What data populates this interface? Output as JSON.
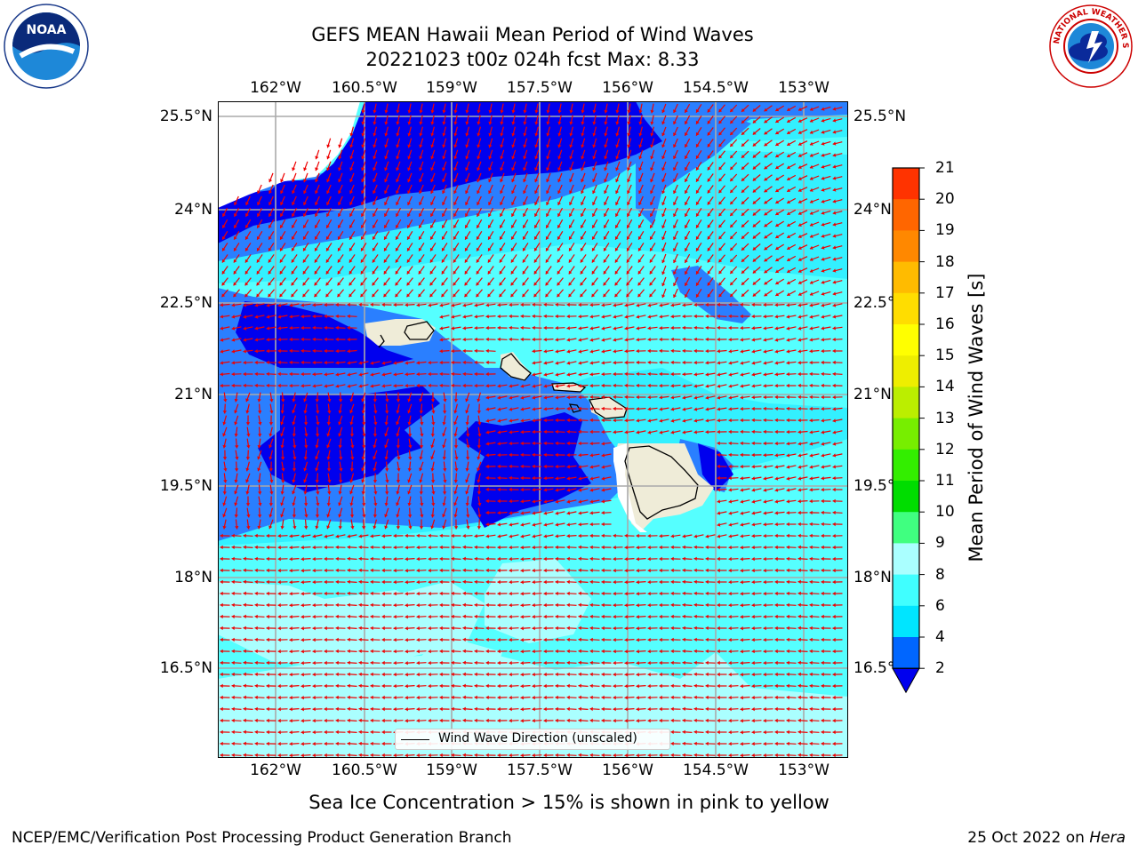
{
  "title": {
    "line1": "GEFS MEAN Hawaii Mean Period of Wind Waves",
    "line2": "20221023 t00z 024h fcst   Max: 8.33"
  },
  "axes": {
    "lon_labels": [
      "162°W",
      "160.5°W",
      "159°W",
      "157.5°W",
      "156°W",
      "154.5°W",
      "153°W"
    ],
    "lat_labels": [
      "25.5°N",
      "24°N",
      "22.5°N",
      "21°N",
      "19.5°N",
      "18°N",
      "16.5°N"
    ]
  },
  "legend": {
    "label": "Wind Wave Direction (unscaled)"
  },
  "colorbar": {
    "label": "Mean Period of Wind Waves [s]",
    "ticks": [
      "2",
      "4",
      "6",
      "8",
      "9",
      "10",
      "11",
      "12",
      "13",
      "14",
      "15",
      "16",
      "17",
      "18",
      "19",
      "20",
      "21"
    ],
    "colors": [
      "#0066ff",
      "#00e5ff",
      "#40ffff",
      "#aaffff",
      "#40ff80",
      "#00dd00",
      "#33ee00",
      "#77ee00",
      "#bbee00",
      "#eeee00",
      "#ffff00",
      "#ffdd00",
      "#ffbb00",
      "#ff8800",
      "#ff6600",
      "#ff3300"
    ],
    "under_color": "#0000ee"
  },
  "map_colors": {
    "lt2": "#0000ee",
    "p2_4": "#2a7fff",
    "p4_6": "#33f0ff",
    "p6_8": "#55ffff",
    "p8_9": "#aaffff",
    "land": "#efecd8",
    "arrow": "#ee0000"
  },
  "footer": {
    "sea_ice_note": "Sea Ice Concentration > 15% is shown in pink to yellow",
    "credit": "NCEP/EMC/Verification Post Processing Product Generation Branch",
    "date": "25 Oct 2022 on",
    "host": "Hera"
  },
  "logos": {
    "noaa_text": "NOAA",
    "nws_text": "NATIONAL WEATHER SERVICE"
  }
}
